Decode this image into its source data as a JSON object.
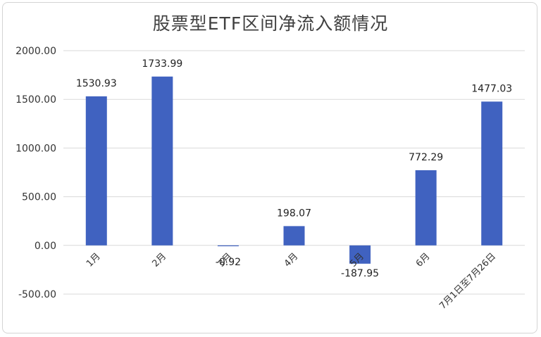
{
  "chart_data": {
    "type": "bar",
    "title": "股票型ETF区间净流入额情况",
    "categories": [
      "1月",
      "2月",
      "3月",
      "4月",
      "5月",
      "6月",
      "7月1日至7月26日"
    ],
    "series": [
      {
        "values": [
          1530.93,
          1733.99,
          -0.92,
          198.07,
          -187.95,
          772.29,
          1477.03
        ],
        "labels": [
          "1530.93",
          "1733.99",
          "-0.92",
          "198.07",
          "-187.95",
          "772.29",
          "1477.03"
        ]
      }
    ],
    "yticks": [
      "2000.00",
      "1500.00",
      "1000.00",
      "500.00",
      "0.00",
      "-500.00"
    ],
    "ylim": [
      -500,
      2000
    ],
    "xlabel": "",
    "ylabel": "",
    "grid": true,
    "legend": "none",
    "bar_color": "#4062c0",
    "grid_color": "#d9d9d9"
  }
}
